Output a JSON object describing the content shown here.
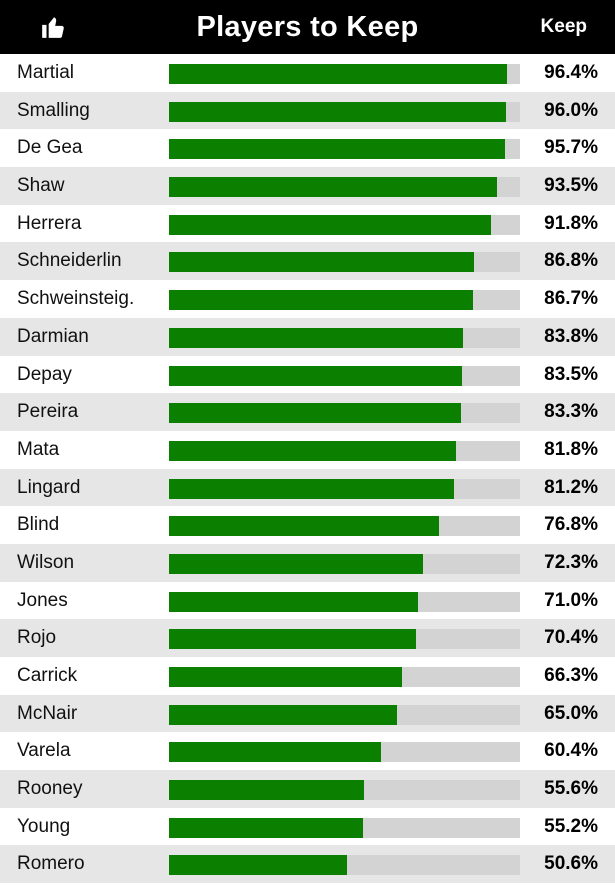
{
  "header": {
    "title": "Players to Keep",
    "value_column_label": "Keep",
    "icon": "thumbs-up-icon"
  },
  "colors": {
    "header_bg": "#000000",
    "bar_fill": "#0a7f00",
    "bar_track": "#d3d3d3",
    "row_alt_bg": "#e6e6e6"
  },
  "chart_data": {
    "type": "bar",
    "orientation": "horizontal",
    "title": "Players to Keep",
    "value_label": "Keep",
    "xlim": [
      0,
      100
    ],
    "unit": "%",
    "categories": [
      "Martial",
      "Smalling",
      "De Gea",
      "Shaw",
      "Herrera",
      "Schneiderlin",
      "Schweinsteig.",
      "Darmian",
      "Depay",
      "Pereira",
      "Mata",
      "Lingard",
      "Blind",
      "Wilson",
      "Jones",
      "Rojo",
      "Carrick",
      "McNair",
      "Varela",
      "Rooney",
      "Young",
      "Romero"
    ],
    "values": [
      96.4,
      96.0,
      95.7,
      93.5,
      91.8,
      86.8,
      86.7,
      83.8,
      83.5,
      83.3,
      81.8,
      81.2,
      76.8,
      72.3,
      71.0,
      70.4,
      66.3,
      65.0,
      60.4,
      55.6,
      55.2,
      50.6
    ],
    "value_labels": [
      "96.4%",
      "96.0%",
      "95.7%",
      "93.5%",
      "91.8%",
      "86.8%",
      "86.7%",
      "83.8%",
      "83.5%",
      "83.3%",
      "81.8%",
      "81.2%",
      "76.8%",
      "72.3%",
      "71.0%",
      "70.4%",
      "66.3%",
      "65.0%",
      "60.4%",
      "55.6%",
      "55.2%",
      "50.6%"
    ]
  }
}
